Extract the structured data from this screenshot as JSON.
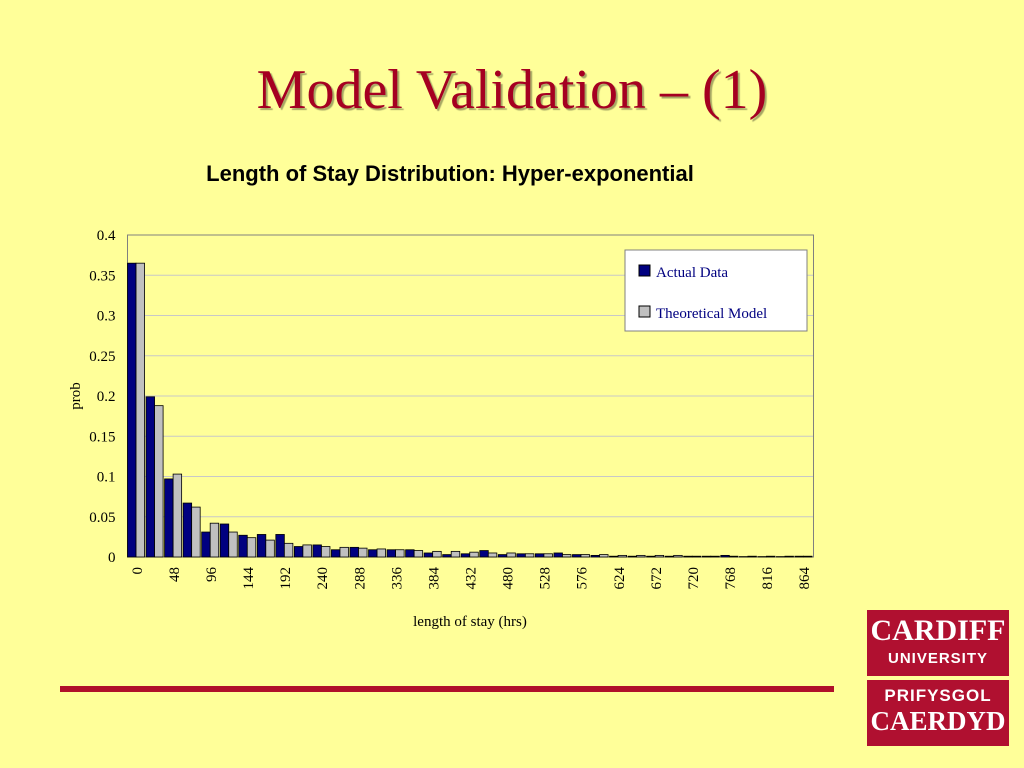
{
  "slide": {
    "title": "Model Validation – (1)",
    "chart_title": "Length of Stay Distribution: Hyper-exponential"
  },
  "logo": {
    "line1": "CARDIFF",
    "line2": "UNIVERSITY",
    "line3": "PRIFYSGOL",
    "line4": "CAERDYD"
  },
  "colors": {
    "background": "#ffff99",
    "title": "#a50021",
    "actual": "#000080",
    "theoretical": "#c0c0c0",
    "divider": "#b0102a",
    "logo": "#b01030"
  },
  "chart_data": {
    "type": "bar",
    "title": "",
    "xlabel": "length of stay (hrs)",
    "ylabel": "prob",
    "ylim": [
      0,
      0.4
    ],
    "yticks": [
      "0",
      "0.05",
      "0.1",
      "0.15",
      "0.2",
      "0.25",
      "0.3",
      "0.35",
      "0.4"
    ],
    "grid": true,
    "legend": "top-right",
    "categories": [
      0,
      24,
      48,
      72,
      96,
      120,
      144,
      168,
      192,
      216,
      240,
      264,
      288,
      312,
      336,
      360,
      384,
      408,
      432,
      456,
      480,
      504,
      528,
      552,
      576,
      600,
      624,
      648,
      672,
      696,
      720,
      744,
      768,
      792,
      816,
      840,
      864
    ],
    "tick_labels": [
      "0",
      "48",
      "96",
      "144",
      "192",
      "240",
      "288",
      "336",
      "384",
      "432",
      "480",
      "528",
      "576",
      "624",
      "672",
      "720",
      "768",
      "816",
      "864"
    ],
    "series": [
      {
        "name": "Actual Data",
        "values": [
          0.365,
          0.199,
          0.097,
          0.067,
          0.031,
          0.041,
          0.027,
          0.028,
          0.028,
          0.013,
          0.015,
          0.009,
          0.012,
          0.009,
          0.009,
          0.009,
          0.005,
          0.003,
          0.004,
          0.008,
          0.003,
          0.004,
          0.004,
          0.005,
          0.003,
          0.002,
          0.001,
          0.001,
          0.001,
          0.001,
          0.001,
          0.001,
          0.002,
          0.0005,
          0.0005,
          0.0005,
          0.001
        ]
      },
      {
        "name": "Theoretical Model",
        "values": [
          0.365,
          0.188,
          0.103,
          0.062,
          0.042,
          0.031,
          0.024,
          0.021,
          0.017,
          0.015,
          0.013,
          0.012,
          0.011,
          0.01,
          0.009,
          0.008,
          0.007,
          0.007,
          0.006,
          0.005,
          0.005,
          0.004,
          0.004,
          0.003,
          0.003,
          0.003,
          0.002,
          0.002,
          0.002,
          0.002,
          0.001,
          0.001,
          0.001,
          0.001,
          0.001,
          0.001,
          0.001
        ]
      }
    ]
  }
}
